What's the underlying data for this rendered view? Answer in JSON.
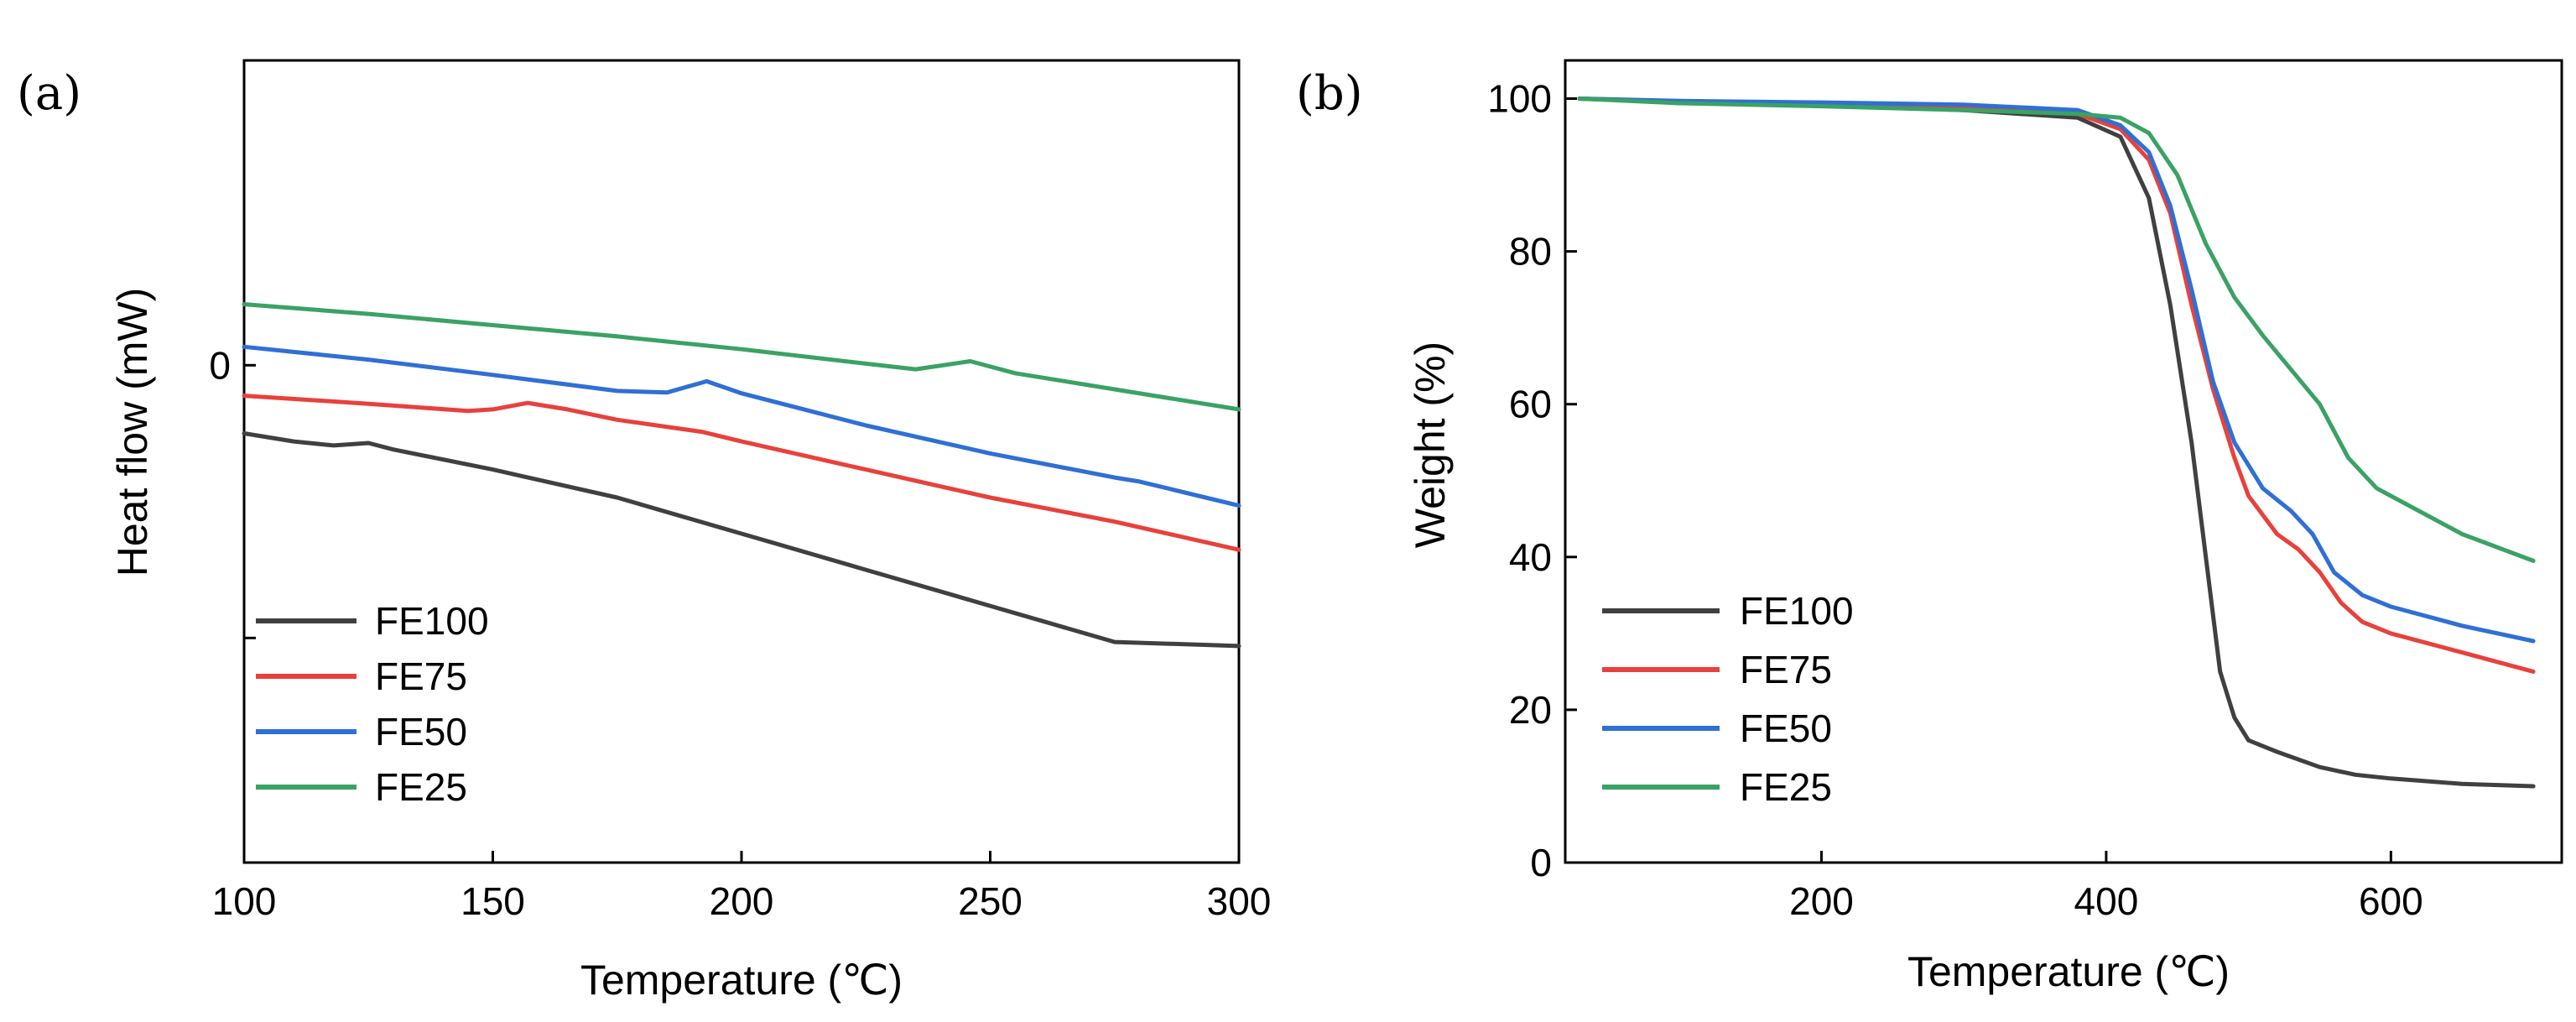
{
  "chart_data": [
    {
      "type": "line",
      "panel_label": "(a)",
      "title": "",
      "xlabel": "Temperature (℃)",
      "ylabel": "Heat flow (mW)",
      "xlim": [
        100,
        300
      ],
      "ylim": [
        -6.2,
        3.8
      ],
      "xticks": [
        100,
        150,
        200,
        250,
        300
      ],
      "xtick_labels": [
        "100",
        "150",
        "200",
        "250",
        "300"
      ],
      "yticks": [
        0,
        -3.4
      ],
      "ytick_labels": [
        "0",
        ""
      ],
      "legend": [
        "FE100",
        "FE75",
        "FE50",
        "FE25"
      ],
      "legend_position": "bottom-left",
      "series": [
        {
          "name": "FE100",
          "color": "#404040",
          "x": [
            100,
            110,
            118,
            125,
            130,
            150,
            175,
            200,
            225,
            250,
            275,
            300
          ],
          "y": [
            -0.85,
            -0.95,
            -1.0,
            -0.97,
            -1.05,
            -1.3,
            -1.65,
            -2.1,
            -2.55,
            -3.0,
            -3.45,
            -3.5
          ]
        },
        {
          "name": "FE75",
          "color": "#e8413c",
          "x": [
            100,
            125,
            145,
            150,
            157,
            165,
            175,
            192,
            200,
            225,
            250,
            275,
            300
          ],
          "y": [
            -0.38,
            -0.48,
            -0.57,
            -0.55,
            -0.47,
            -0.55,
            -0.68,
            -0.83,
            -0.95,
            -1.3,
            -1.65,
            -1.95,
            -2.3
          ]
        },
        {
          "name": "FE50",
          "color": "#2f6fd6",
          "x": [
            100,
            125,
            150,
            175,
            185,
            193,
            200,
            225,
            250,
            275,
            280,
            300
          ],
          "y": [
            0.23,
            0.07,
            -0.12,
            -0.32,
            -0.34,
            -0.2,
            -0.35,
            -0.75,
            -1.1,
            -1.4,
            -1.45,
            -1.75
          ]
        },
        {
          "name": "FE25",
          "color": "#3aa264",
          "x": [
            100,
            125,
            150,
            175,
            200,
            225,
            235,
            246,
            255,
            275,
            300
          ],
          "y": [
            0.76,
            0.64,
            0.5,
            0.36,
            0.2,
            0.02,
            -0.05,
            0.05,
            -0.1,
            -0.3,
            -0.55
          ]
        }
      ]
    },
    {
      "type": "line",
      "panel_label": "(b)",
      "title": "",
      "xlabel": "Temperature (℃)",
      "ylabel": "Weight (%)",
      "xlim": [
        20,
        720
      ],
      "ylim": [
        0,
        105
      ],
      "xticks": [
        200,
        400,
        600
      ],
      "xtick_labels": [
        "200",
        "400",
        "600"
      ],
      "yticks": [
        0,
        20,
        40,
        60,
        80,
        100
      ],
      "ytick_labels": [
        "0",
        "20",
        "40",
        "60",
        "80",
        "100"
      ],
      "legend": [
        "FE100",
        "FE75",
        "FE50",
        "FE25"
      ],
      "legend_position": "bottom-left",
      "series": [
        {
          "name": "FE100",
          "color": "#404040",
          "x": [
            30,
            100,
            200,
            300,
            380,
            410,
            430,
            445,
            460,
            470,
            480,
            490,
            500,
            520,
            550,
            575,
            600,
            650,
            700
          ],
          "y": [
            100,
            99.5,
            99.2,
            98.5,
            97.5,
            95,
            87,
            73,
            55,
            40,
            25,
            19,
            16,
            14.5,
            12.5,
            11.5,
            11,
            10.3,
            10
          ]
        },
        {
          "name": "FE75",
          "color": "#e8413c",
          "x": [
            30,
            100,
            200,
            300,
            380,
            410,
            430,
            445,
            460,
            475,
            490,
            500,
            520,
            535,
            550,
            565,
            580,
            600,
            650,
            700
          ],
          "y": [
            100,
            99.6,
            99.3,
            98.8,
            98,
            96,
            92,
            85,
            73,
            62,
            53,
            48,
            43,
            41,
            38,
            34,
            31.5,
            30,
            27.5,
            25
          ]
        },
        {
          "name": "FE50",
          "color": "#2f6fd6",
          "x": [
            30,
            100,
            200,
            300,
            380,
            410,
            430,
            445,
            460,
            475,
            490,
            510,
            530,
            545,
            560,
            580,
            600,
            650,
            700
          ],
          "y": [
            100,
            99.7,
            99.5,
            99.2,
            98.5,
            96.5,
            93,
            86,
            75,
            63,
            55,
            49,
            46,
            43,
            38,
            35,
            33.5,
            31,
            29
          ]
        },
        {
          "name": "FE25",
          "color": "#3aa264",
          "x": [
            30,
            100,
            200,
            300,
            380,
            410,
            430,
            450,
            470,
            490,
            510,
            530,
            550,
            570,
            590,
            600,
            650,
            700
          ],
          "y": [
            100,
            99.4,
            99,
            98.5,
            98,
            97.5,
            95.5,
            90,
            81,
            74,
            69,
            64.5,
            60,
            53,
            49,
            48,
            43,
            39.5
          ]
        }
      ]
    }
  ]
}
